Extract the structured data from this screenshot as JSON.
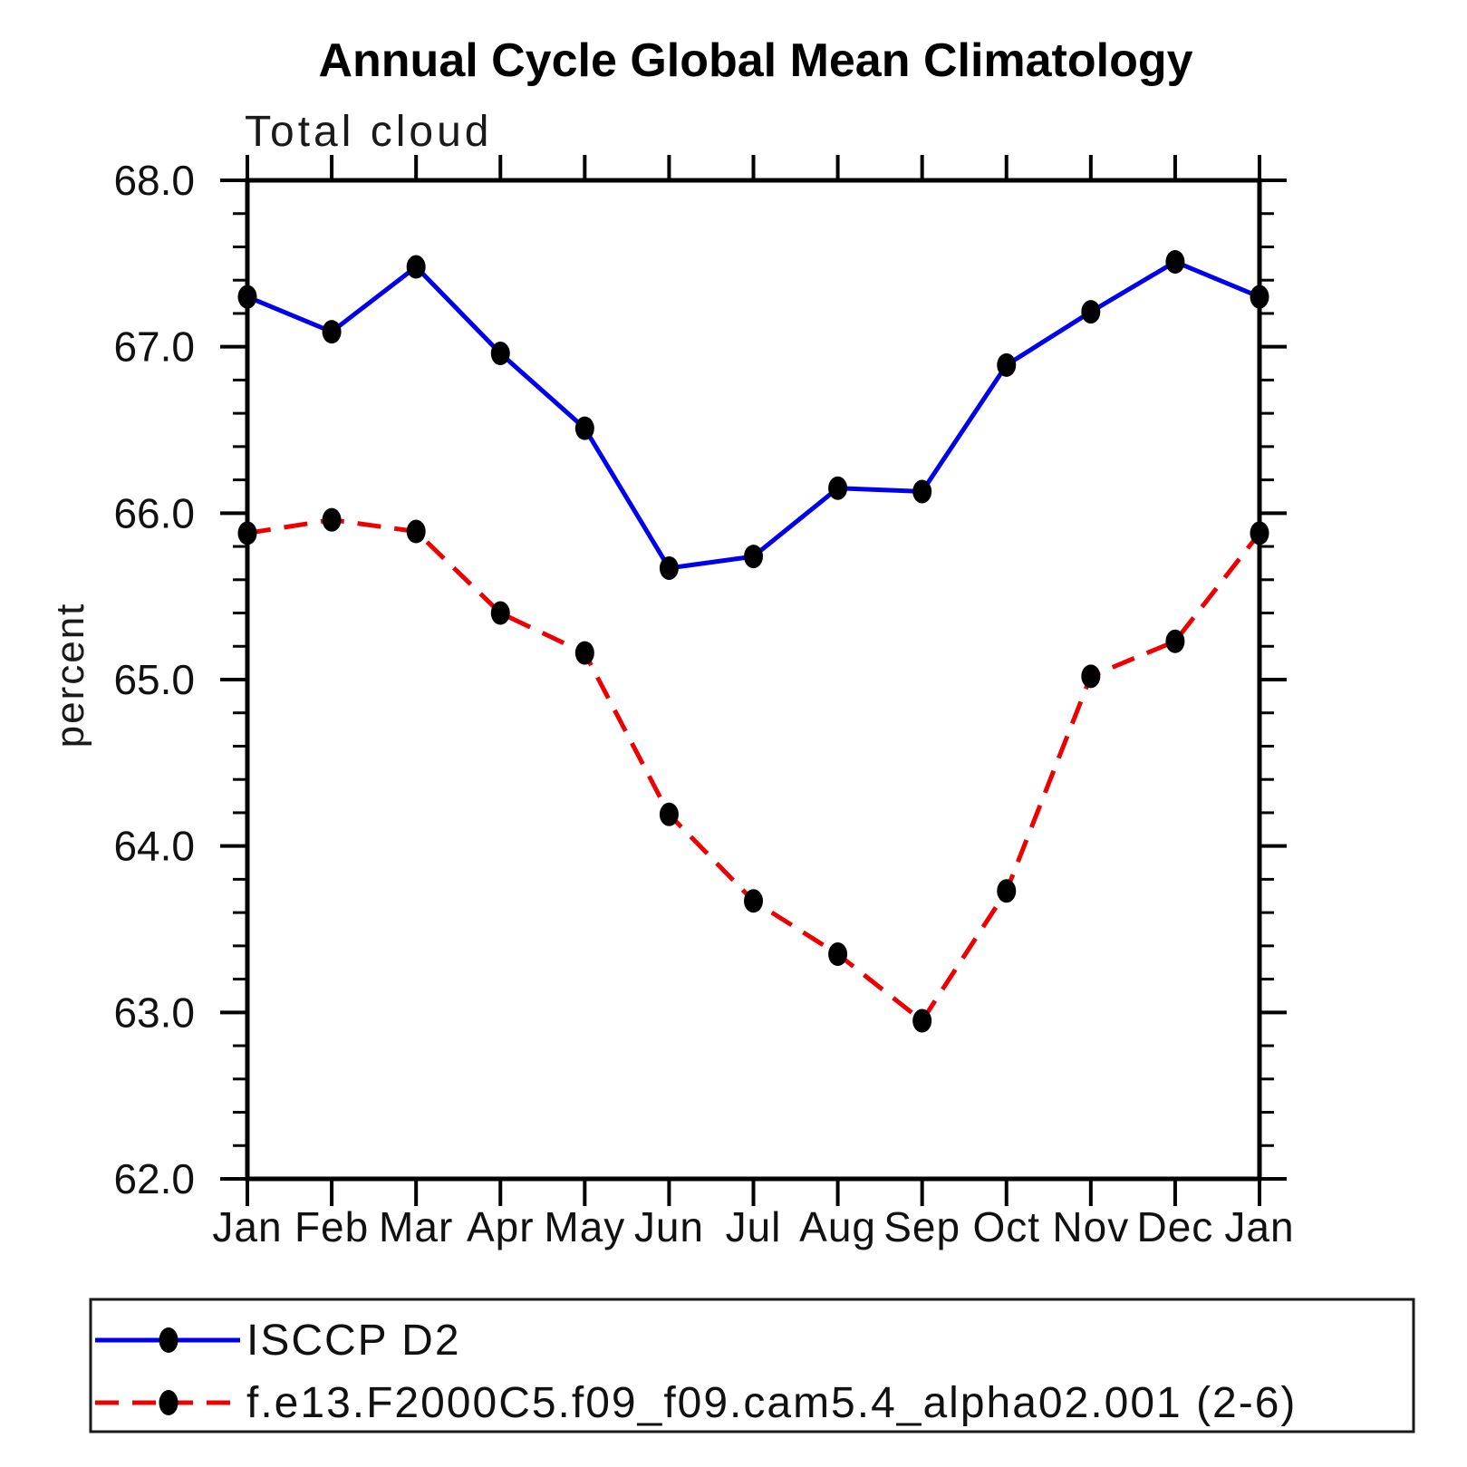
{
  "chart_data": {
    "type": "line",
    "title": "Annual Cycle Global Mean Climatology",
    "subtitle": "Total cloud",
    "ylabel": "percent",
    "categories": [
      "Jan",
      "Feb",
      "Mar",
      "Apr",
      "May",
      "Jun",
      "Jul",
      "Aug",
      "Sep",
      "Oct",
      "Nov",
      "Dec",
      "Jan"
    ],
    "series": [
      {
        "name": "ISCCP D2",
        "line_style": "solid",
        "color": "#0000EE",
        "marker": "filled-circle",
        "marker_color": "#000000",
        "values": [
          67.3,
          67.09,
          67.48,
          66.96,
          66.51,
          65.67,
          65.74,
          66.15,
          66.13,
          66.89,
          67.21,
          67.51,
          67.3
        ]
      },
      {
        "name": "f.e13.F2000C5.f09_f09.cam5.4_alpha02.001 (2-6)",
        "line_style": "dashed",
        "color": "#EE0000",
        "marker": "filled-circle",
        "marker_color": "#000000",
        "values": [
          65.88,
          65.96,
          65.89,
          65.4,
          65.16,
          64.19,
          63.67,
          63.35,
          62.95,
          63.73,
          65.02,
          65.23,
          65.88
        ]
      }
    ],
    "ylim": [
      62.0,
      68.0
    ],
    "ytick_major_interval": 1.0,
    "ytick_minor_interval": 0.2,
    "ytick_labels": [
      "68.0",
      "67.0",
      "66.0",
      "65.0",
      "64.0",
      "63.0",
      "62.0"
    ],
    "grid": false,
    "frame": "box",
    "legend_position": "bottom",
    "axis_color": "#000000"
  }
}
